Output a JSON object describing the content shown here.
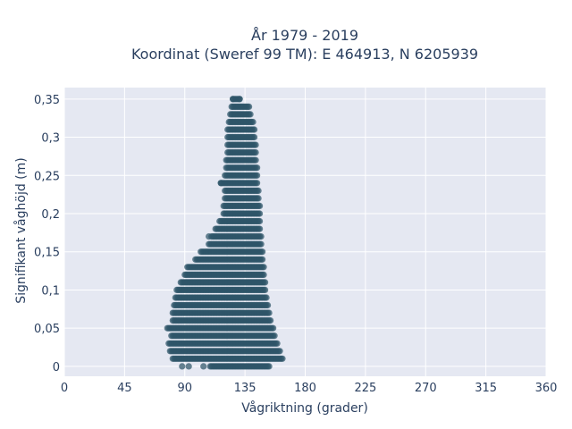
{
  "chart_data": {
    "type": "scatter",
    "title_line1": "År 1979 - 2019",
    "title_line2": "Koordinat (Sweref 99 TM): E 464913, N 6205939",
    "xlabel": "Vågriktning (grader)",
    "ylabel": "Signifikant våghöjd (m)",
    "xlim": [
      0,
      360
    ],
    "ylim": [
      -0.013,
      0.365
    ],
    "xticks": [
      {
        "value": 0,
        "label": "0"
      },
      {
        "value": 45,
        "label": "45"
      },
      {
        "value": 90,
        "label": "90"
      },
      {
        "value": 135,
        "label": "135"
      },
      {
        "value": 180,
        "label": "180"
      },
      {
        "value": 225,
        "label": "225"
      },
      {
        "value": 270,
        "label": "270"
      },
      {
        "value": 315,
        "label": "315"
      },
      {
        "value": 360,
        "label": "360"
      }
    ],
    "yticks": [
      {
        "value": 0,
        "label": "0"
      },
      {
        "value": 0.05,
        "label": "0,05"
      },
      {
        "value": 0.1,
        "label": "0,1"
      },
      {
        "value": 0.15,
        "label": "0,15"
      },
      {
        "value": 0.2,
        "label": "0,2"
      },
      {
        "value": 0.25,
        "label": "0,25"
      },
      {
        "value": 0.3,
        "label": "0,3"
      },
      {
        "value": 0.35,
        "label": "0,35"
      }
    ],
    "grid": true,
    "marker_color": "#2e5468",
    "background_color": "#e5e8f2",
    "bands": [
      {
        "y": 0.0,
        "x": [
          109,
          153
        ]
      },
      {
        "y": 0.01,
        "x": [
          81,
          163
        ]
      },
      {
        "y": 0.02,
        "x": [
          79,
          161
        ]
      },
      {
        "y": 0.03,
        "x": [
          78,
          159
        ]
      },
      {
        "y": 0.04,
        "x": [
          80,
          157
        ]
      },
      {
        "y": 0.05,
        "x": [
          77,
          156
        ]
      },
      {
        "y": 0.06,
        "x": [
          81,
          154
        ]
      },
      {
        "y": 0.07,
        "x": [
          81,
          153
        ]
      },
      {
        "y": 0.08,
        "x": [
          82,
          152
        ]
      },
      {
        "y": 0.09,
        "x": [
          83,
          151
        ]
      },
      {
        "y": 0.1,
        "x": [
          84,
          150
        ]
      },
      {
        "y": 0.11,
        "x": [
          87,
          150
        ]
      },
      {
        "y": 0.12,
        "x": [
          90,
          149
        ]
      },
      {
        "y": 0.13,
        "x": [
          92,
          149
        ]
      },
      {
        "y": 0.14,
        "x": [
          98,
          148
        ]
      },
      {
        "y": 0.15,
        "x": [
          102,
          148
        ]
      },
      {
        "y": 0.16,
        "x": [
          108,
          147
        ]
      },
      {
        "y": 0.17,
        "x": [
          110,
          147
        ]
      },
      {
        "y": 0.18,
        "x": [
          113,
          146
        ]
      },
      {
        "y": 0.19,
        "x": [
          116,
          146
        ]
      },
      {
        "y": 0.2,
        "x": [
          119,
          146
        ]
      },
      {
        "y": 0.21,
        "x": [
          119,
          146
        ]
      },
      {
        "y": 0.22,
        "x": [
          120,
          145
        ]
      },
      {
        "y": 0.23,
        "x": [
          120,
          145
        ]
      },
      {
        "y": 0.24,
        "x": [
          117,
          144
        ]
      },
      {
        "y": 0.25,
        "x": [
          120,
          144
        ]
      },
      {
        "y": 0.26,
        "x": [
          121,
          144
        ]
      },
      {
        "y": 0.27,
        "x": [
          121,
          143
        ]
      },
      {
        "y": 0.28,
        "x": [
          122,
          143
        ]
      },
      {
        "y": 0.29,
        "x": [
          122,
          143
        ]
      },
      {
        "y": 0.3,
        "x": [
          122,
          142
        ]
      },
      {
        "y": 0.31,
        "x": [
          122,
          142
        ]
      },
      {
        "y": 0.32,
        "x": [
          123,
          141
        ]
      },
      {
        "y": 0.33,
        "x": [
          124,
          139
        ]
      },
      {
        "y": 0.34,
        "x": [
          125,
          138
        ]
      },
      {
        "y": 0.35,
        "x": [
          126,
          131
        ]
      }
    ],
    "outliers": [
      {
        "x": 88,
        "y": 0.0
      },
      {
        "x": 93,
        "y": 0.0
      },
      {
        "x": 104,
        "y": 0.0
      },
      {
        "x": 108,
        "y": 0.17
      },
      {
        "x": 117,
        "y": 0.24
      },
      {
        "x": 126,
        "y": 0.35
      },
      {
        "x": 131,
        "y": 0.35
      }
    ]
  }
}
